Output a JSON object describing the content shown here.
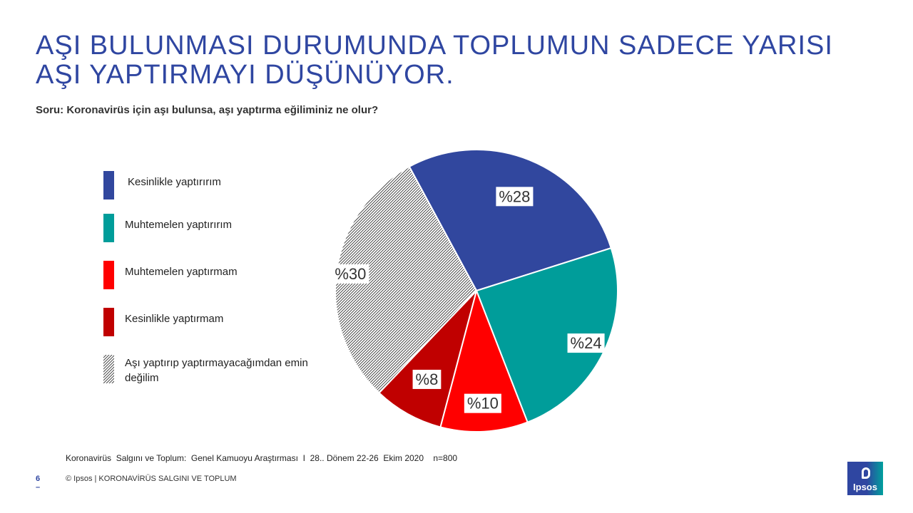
{
  "header": {
    "title_line1": "AŞI BULUNMASI DURUMUNDA TOPLUMUN SADECE YARISI",
    "title_line2": "AŞI YAPTIRMAYI DÜŞÜNÜYOR."
  },
  "question": "Soru: Koronavirüs için aşı bulunsa, aşı yaptırma eğiliminiz ne olur?",
  "chart_data": {
    "type": "pie",
    "start_angle_deg": -28.4,
    "direction": "clockwise",
    "slices": [
      {
        "label": "Kesinlikle  yaptırırım",
        "value": 28,
        "display": "%28",
        "color": "#31479e"
      },
      {
        "label": "Muhtemelen  yaptırırım",
        "value": 24,
        "display": "%24",
        "color": "#009d9a"
      },
      {
        "label": "Muhtemelen  yaptırmam",
        "value": 10,
        "display": "%10",
        "color": "#ff0000"
      },
      {
        "label": "Kesinlikle  yaptırmam",
        "value": 8,
        "display": "%8",
        "color": "#c00000"
      },
      {
        "label": "Aşı yaptırıp  yaptırmayacağımdan emin değilim",
        "value": 30,
        "display": "%30",
        "color": "hatched"
      }
    ],
    "legend_position": "left"
  },
  "source_note": "Koronavirüs  Salgını ve Toplum:  Genel Kamuoyu Araştırması  I  28.. Dönem 22-26  Ekim 2020    n=800",
  "footer": {
    "page": "6 –",
    "text": "© Ipsos | KORONAVİRÜS SALGINI VE TOPLUM"
  },
  "logo": {
    "text": "Ipsos"
  }
}
